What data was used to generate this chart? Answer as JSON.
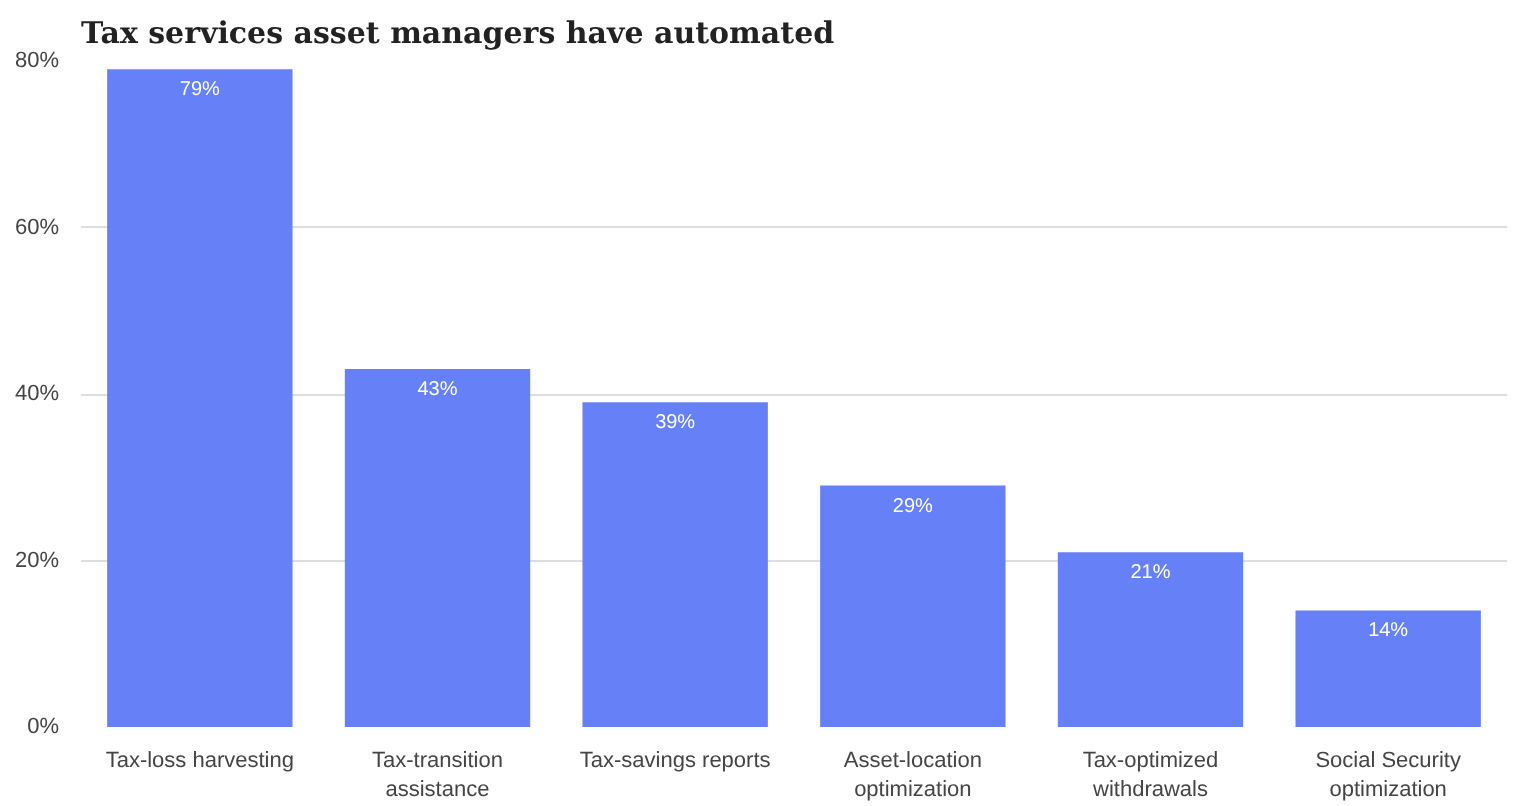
{
  "chart_data": {
    "type": "bar",
    "title": "Tax services asset managers have automated",
    "categories": [
      "Tax-loss harvesting",
      "Tax-transition assistance",
      "Tax-savings reports",
      "Asset-location optimization",
      "Tax-optimized withdrawals",
      "Social Security optimization"
    ],
    "values": [
      79,
      43,
      39,
      29,
      21,
      14
    ],
    "value_labels": [
      "79%",
      "43%",
      "39%",
      "29%",
      "21%",
      "14%"
    ],
    "color": "#6680f8",
    "ylim": [
      0,
      80
    ],
    "yticks": [
      {
        "value": 0,
        "label": "0%"
      },
      {
        "value": 20,
        "label": "20%"
      },
      {
        "value": 40,
        "label": "40%"
      },
      {
        "value": 60,
        "label": "60%"
      },
      {
        "value": 80,
        "label": "80%"
      }
    ],
    "grid": "y"
  }
}
